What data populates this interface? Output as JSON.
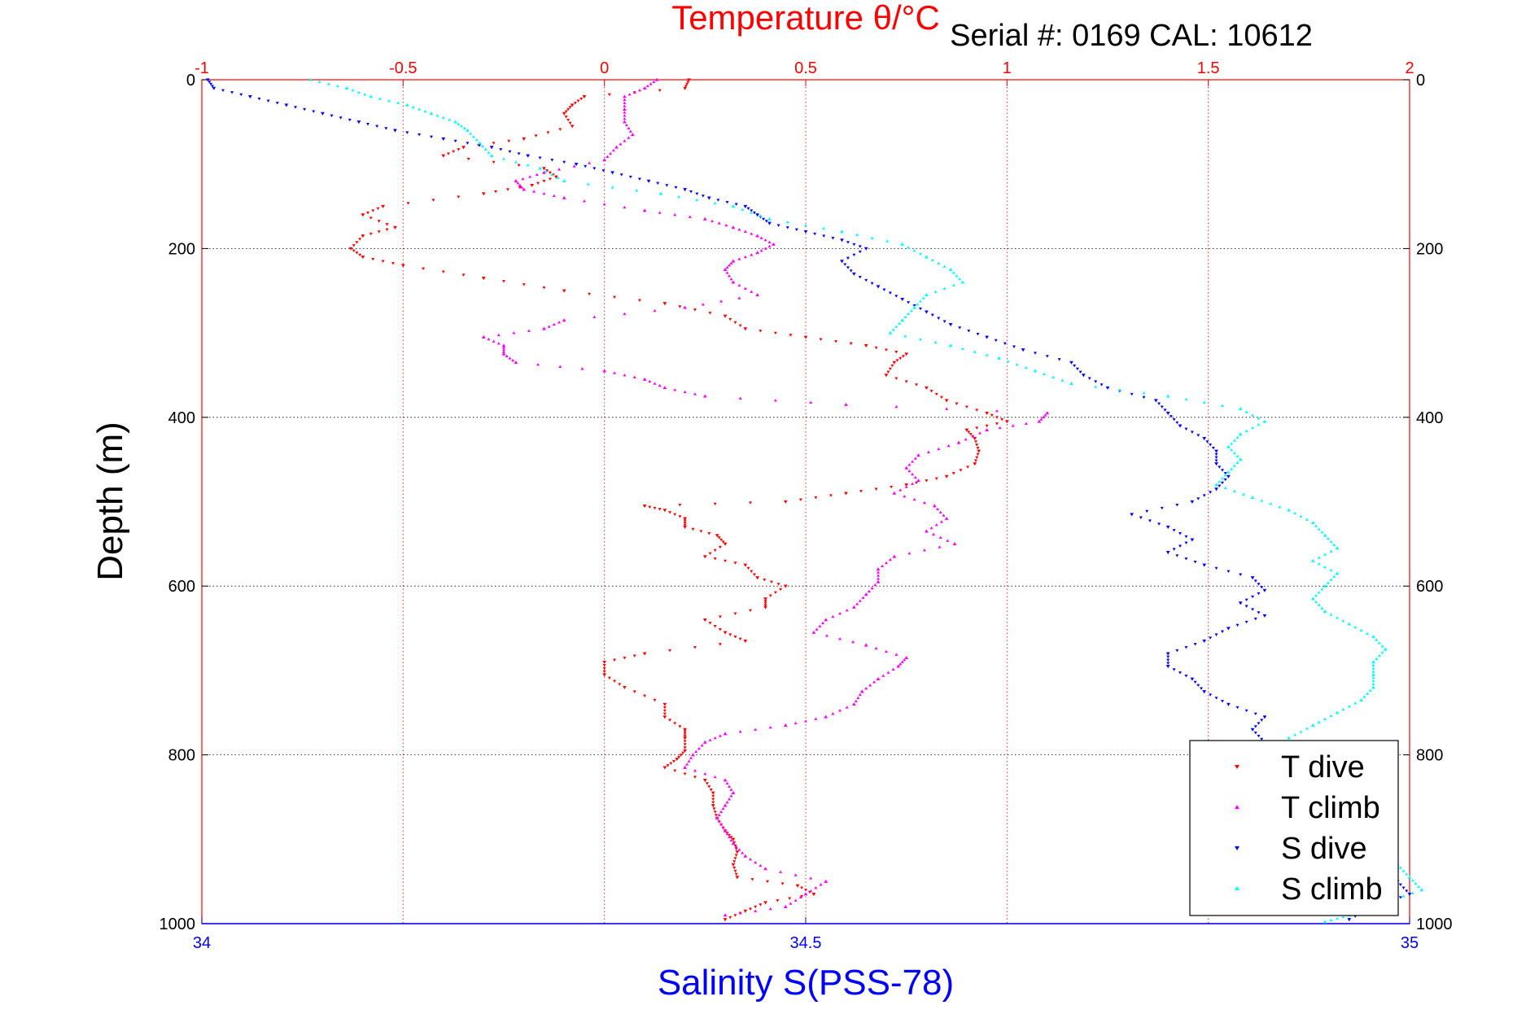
{
  "chart_data": {
    "type": "scatter",
    "title": "Temperature θ/°C",
    "serial_label": "Serial #: 0169 CAL: 10612",
    "ylabel": "Depth (m)",
    "xlabel_bottom": "Salinity S(PSS-78)",
    "xlabel_top": "Temperature θ/°C",
    "depth_range": [
      0,
      1000
    ],
    "temperature_range": [
      -1,
      2
    ],
    "salinity_range": [
      34,
      35
    ],
    "depth_ticks": [
      "0",
      "200",
      "400",
      "600",
      "800",
      "1000"
    ],
    "temperature_ticks": [
      "-1",
      "-0.5",
      "0",
      "0.5",
      "1",
      "1.5",
      "2"
    ],
    "salinity_ticks": [
      "34",
      "34.5",
      "35"
    ],
    "grid": true,
    "legend_position": "bottom-right",
    "colors": {
      "t_dive": "#ff0000",
      "t_climb": "#ff00ff",
      "s_dive": "#0000ff",
      "s_climb": "#00ffff",
      "temperature_axis": "#ff0000",
      "salinity_axis": "#0000ff"
    },
    "series": [
      {
        "name": "T dive",
        "axis": "temperature",
        "marker": "triangle-down",
        "points": [
          [
            0,
            0.21
          ],
          [
            10,
            0.2
          ],
          [
            20,
            -0.05
          ],
          [
            30,
            -0.08
          ],
          [
            40,
            -0.1
          ],
          [
            55,
            -0.08
          ],
          [
            70,
            -0.2
          ],
          [
            80,
            -0.35
          ],
          [
            90,
            -0.4
          ],
          [
            105,
            -0.15
          ],
          [
            115,
            -0.12
          ],
          [
            125,
            -0.18
          ],
          [
            135,
            -0.3
          ],
          [
            150,
            -0.55
          ],
          [
            160,
            -0.6
          ],
          [
            175,
            -0.52
          ],
          [
            185,
            -0.6
          ],
          [
            200,
            -0.63
          ],
          [
            210,
            -0.6
          ],
          [
            220,
            -0.5
          ],
          [
            235,
            -0.3
          ],
          [
            250,
            -0.1
          ],
          [
            265,
            0.15
          ],
          [
            280,
            0.3
          ],
          [
            295,
            0.35
          ],
          [
            305,
            0.5
          ],
          [
            315,
            0.65
          ],
          [
            325,
            0.75
          ],
          [
            335,
            0.72
          ],
          [
            350,
            0.7
          ],
          [
            365,
            0.8
          ],
          [
            380,
            0.85
          ],
          [
            395,
            0.95
          ],
          [
            405,
            1.0
          ],
          [
            415,
            0.9
          ],
          [
            425,
            0.92
          ],
          [
            440,
            0.93
          ],
          [
            455,
            0.92
          ],
          [
            470,
            0.85
          ],
          [
            480,
            0.75
          ],
          [
            490,
            0.6
          ],
          [
            500,
            0.45
          ],
          [
            505,
            0.1
          ],
          [
            510,
            0.15
          ],
          [
            520,
            0.2
          ],
          [
            530,
            0.2
          ],
          [
            540,
            0.28
          ],
          [
            550,
            0.3
          ],
          [
            565,
            0.25
          ],
          [
            575,
            0.35
          ],
          [
            590,
            0.38
          ],
          [
            600,
            0.45
          ],
          [
            615,
            0.4
          ],
          [
            625,
            0.4
          ],
          [
            640,
            0.25
          ],
          [
            655,
            0.3
          ],
          [
            665,
            0.35
          ],
          [
            680,
            0.1
          ],
          [
            690,
            0.0
          ],
          [
            705,
            0.0
          ],
          [
            720,
            0.05
          ],
          [
            740,
            0.15
          ],
          [
            755,
            0.15
          ],
          [
            770,
            0.2
          ],
          [
            780,
            0.2
          ],
          [
            795,
            0.2
          ],
          [
            805,
            0.18
          ],
          [
            815,
            0.15
          ],
          [
            830,
            0.25
          ],
          [
            845,
            0.27
          ],
          [
            860,
            0.27
          ],
          [
            875,
            0.28
          ],
          [
            890,
            0.3
          ],
          [
            900,
            0.32
          ],
          [
            915,
            0.33
          ],
          [
            930,
            0.32
          ],
          [
            945,
            0.33
          ],
          [
            955,
            0.48
          ],
          [
            965,
            0.52
          ],
          [
            975,
            0.4
          ],
          [
            985,
            0.35
          ],
          [
            995,
            0.3
          ]
        ]
      },
      {
        "name": "T climb",
        "axis": "temperature",
        "marker": "triangle-up",
        "points": [
          [
            0,
            0.13
          ],
          [
            10,
            0.1
          ],
          [
            20,
            0.05
          ],
          [
            35,
            0.05
          ],
          [
            50,
            0.05
          ],
          [
            65,
            0.07
          ],
          [
            80,
            0.03
          ],
          [
            95,
            0.0
          ],
          [
            110,
            -0.15
          ],
          [
            120,
            -0.22
          ],
          [
            130,
            -0.2
          ],
          [
            140,
            -0.1
          ],
          [
            155,
            0.1
          ],
          [
            165,
            0.25
          ],
          [
            175,
            0.32
          ],
          [
            185,
            0.38
          ],
          [
            195,
            0.42
          ],
          [
            205,
            0.38
          ],
          [
            215,
            0.32
          ],
          [
            225,
            0.3
          ],
          [
            240,
            0.32
          ],
          [
            255,
            0.38
          ],
          [
            270,
            0.2
          ],
          [
            285,
            -0.1
          ],
          [
            295,
            -0.15
          ],
          [
            305,
            -0.3
          ],
          [
            315,
            -0.25
          ],
          [
            325,
            -0.25
          ],
          [
            335,
            -0.22
          ],
          [
            345,
            0.0
          ],
          [
            355,
            0.1
          ],
          [
            365,
            0.15
          ],
          [
            375,
            0.25
          ],
          [
            385,
            0.6
          ],
          [
            395,
            1.1
          ],
          [
            405,
            1.08
          ],
          [
            415,
            0.95
          ],
          [
            430,
            0.88
          ],
          [
            445,
            0.78
          ],
          [
            460,
            0.75
          ],
          [
            475,
            0.78
          ],
          [
            490,
            0.72
          ],
          [
            505,
            0.82
          ],
          [
            520,
            0.85
          ],
          [
            535,
            0.8
          ],
          [
            550,
            0.87
          ],
          [
            565,
            0.72
          ],
          [
            580,
            0.68
          ],
          [
            595,
            0.68
          ],
          [
            610,
            0.65
          ],
          [
            625,
            0.62
          ],
          [
            640,
            0.55
          ],
          [
            655,
            0.52
          ],
          [
            670,
            0.65
          ],
          [
            685,
            0.75
          ],
          [
            695,
            0.73
          ],
          [
            710,
            0.68
          ],
          [
            725,
            0.64
          ],
          [
            740,
            0.62
          ],
          [
            755,
            0.55
          ],
          [
            765,
            0.45
          ],
          [
            775,
            0.3
          ],
          [
            785,
            0.25
          ],
          [
            800,
            0.22
          ],
          [
            815,
            0.2
          ],
          [
            830,
            0.3
          ],
          [
            845,
            0.32
          ],
          [
            860,
            0.3
          ],
          [
            875,
            0.28
          ],
          [
            890,
            0.3
          ],
          [
            905,
            0.32
          ],
          [
            920,
            0.35
          ],
          [
            935,
            0.4
          ],
          [
            950,
            0.55
          ],
          [
            965,
            0.5
          ],
          [
            980,
            0.45
          ],
          [
            990,
            0.3
          ]
        ]
      },
      {
        "name": "S dive",
        "axis": "salinity",
        "marker": "triangle-down",
        "points": [
          [
            0,
            34.005
          ],
          [
            10,
            34.01
          ],
          [
            20,
            34.04
          ],
          [
            30,
            34.07
          ],
          [
            40,
            34.1
          ],
          [
            50,
            34.13
          ],
          [
            60,
            34.16
          ],
          [
            70,
            34.2
          ],
          [
            80,
            34.24
          ],
          [
            90,
            34.27
          ],
          [
            100,
            34.31
          ],
          [
            110,
            34.34
          ],
          [
            120,
            34.37
          ],
          [
            130,
            34.4
          ],
          [
            140,
            34.42
          ],
          [
            150,
            34.45
          ],
          [
            160,
            34.46
          ],
          [
            170,
            34.47
          ],
          [
            180,
            34.5
          ],
          [
            190,
            34.53
          ],
          [
            200,
            34.55
          ],
          [
            215,
            34.53
          ],
          [
            230,
            34.54
          ],
          [
            245,
            34.56
          ],
          [
            260,
            34.58
          ],
          [
            275,
            34.6
          ],
          [
            290,
            34.62
          ],
          [
            305,
            34.65
          ],
          [
            320,
            34.68
          ],
          [
            335,
            34.72
          ],
          [
            350,
            34.73
          ],
          [
            365,
            34.75
          ],
          [
            380,
            34.79
          ],
          [
            395,
            34.8
          ],
          [
            410,
            34.81
          ],
          [
            425,
            34.83
          ],
          [
            440,
            34.84
          ],
          [
            455,
            34.84
          ],
          [
            470,
            34.85
          ],
          [
            485,
            34.84
          ],
          [
            500,
            34.82
          ],
          [
            515,
            34.77
          ],
          [
            530,
            34.8
          ],
          [
            545,
            34.82
          ],
          [
            560,
            34.8
          ],
          [
            575,
            34.83
          ],
          [
            590,
            34.87
          ],
          [
            605,
            34.88
          ],
          [
            620,
            34.86
          ],
          [
            635,
            34.88
          ],
          [
            650,
            34.85
          ],
          [
            665,
            34.83
          ],
          [
            680,
            34.8
          ],
          [
            695,
            34.8
          ],
          [
            710,
            34.82
          ],
          [
            725,
            34.83
          ],
          [
            740,
            34.85
          ],
          [
            755,
            34.88
          ],
          [
            770,
            34.87
          ],
          [
            785,
            34.88
          ],
          [
            800,
            34.87
          ],
          [
            815,
            34.88
          ],
          [
            830,
            34.9
          ],
          [
            845,
            34.91
          ],
          [
            860,
            34.92
          ],
          [
            875,
            34.93
          ],
          [
            890,
            34.94
          ],
          [
            905,
            34.95
          ],
          [
            920,
            34.96
          ],
          [
            935,
            34.98
          ],
          [
            950,
            34.99
          ],
          [
            965,
            35.0
          ],
          [
            980,
            34.97
          ],
          [
            995,
            34.95
          ]
        ]
      },
      {
        "name": "S climb",
        "axis": "salinity",
        "marker": "triangle-up",
        "points": [
          [
            0,
            34.09
          ],
          [
            10,
            34.12
          ],
          [
            20,
            34.14
          ],
          [
            30,
            34.17
          ],
          [
            40,
            34.19
          ],
          [
            50,
            34.21
          ],
          [
            60,
            34.22
          ],
          [
            75,
            34.23
          ],
          [
            90,
            34.24
          ],
          [
            105,
            34.28
          ],
          [
            120,
            34.3
          ],
          [
            135,
            34.38
          ],
          [
            150,
            34.44
          ],
          [
            165,
            34.47
          ],
          [
            180,
            34.53
          ],
          [
            195,
            34.58
          ],
          [
            210,
            34.6
          ],
          [
            225,
            34.62
          ],
          [
            240,
            34.63
          ],
          [
            255,
            34.6
          ],
          [
            270,
            34.59
          ],
          [
            285,
            34.58
          ],
          [
            300,
            34.57
          ],
          [
            315,
            34.62
          ],
          [
            330,
            34.66
          ],
          [
            345,
            34.69
          ],
          [
            360,
            34.72
          ],
          [
            375,
            34.8
          ],
          [
            390,
            34.86
          ],
          [
            405,
            34.88
          ],
          [
            420,
            34.86
          ],
          [
            435,
            34.85
          ],
          [
            450,
            34.86
          ],
          [
            465,
            34.85
          ],
          [
            480,
            34.84
          ],
          [
            495,
            34.87
          ],
          [
            510,
            34.9
          ],
          [
            525,
            34.92
          ],
          [
            540,
            34.93
          ],
          [
            555,
            34.94
          ],
          [
            570,
            34.92
          ],
          [
            585,
            34.94
          ],
          [
            600,
            34.93
          ],
          [
            615,
            34.92
          ],
          [
            630,
            34.93
          ],
          [
            645,
            34.95
          ],
          [
            660,
            34.97
          ],
          [
            675,
            34.98
          ],
          [
            690,
            34.97
          ],
          [
            705,
            34.97
          ],
          [
            720,
            34.97
          ],
          [
            735,
            34.96
          ],
          [
            750,
            34.94
          ],
          [
            765,
            34.92
          ],
          [
            780,
            34.9
          ],
          [
            795,
            34.88
          ],
          [
            810,
            34.89
          ],
          [
            825,
            34.91
          ],
          [
            840,
            34.93
          ],
          [
            855,
            34.93
          ],
          [
            870,
            34.94
          ],
          [
            885,
            34.95
          ],
          [
            900,
            34.96
          ],
          [
            915,
            34.97
          ],
          [
            930,
            34.99
          ],
          [
            945,
            35.0
          ],
          [
            960,
            35.01
          ],
          [
            975,
            34.98
          ],
          [
            990,
            34.95
          ],
          [
            998,
            34.93
          ]
        ]
      }
    ]
  }
}
